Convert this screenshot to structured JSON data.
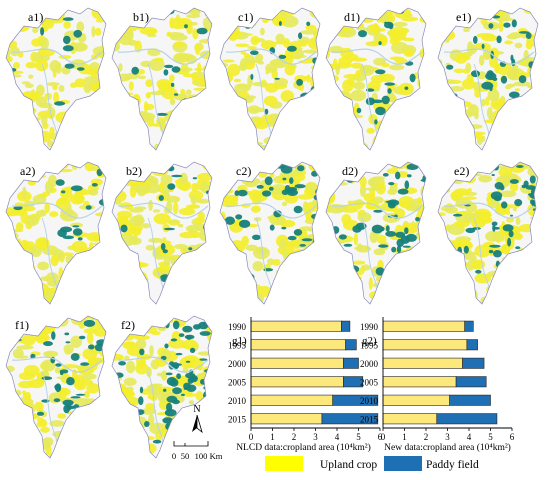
{
  "panels": [
    {
      "label": "a1)",
      "paddy_share": 0.1
    },
    {
      "label": "b1)",
      "paddy_share": 0.12
    },
    {
      "label": "c1)",
      "paddy_share": 0.15
    },
    {
      "label": "d1)",
      "paddy_share": 0.17
    },
    {
      "label": "e1)",
      "paddy_share": 0.22
    },
    {
      "label": "a2)",
      "paddy_share": 0.12
    },
    {
      "label": "b2)",
      "paddy_share": 0.13
    },
    {
      "label": "c2)",
      "paddy_share": 0.32
    },
    {
      "label": "d2)",
      "paddy_share": 0.36
    },
    {
      "label": "e2)",
      "paddy_share": 0.4
    },
    {
      "label": "f1)",
      "paddy_share": 0.3
    },
    {
      "label": "f2)",
      "paddy_share": 0.52
    }
  ],
  "north_arrow": "N",
  "scale_bar": {
    "ticks": [
      "0",
      "50",
      "100"
    ],
    "unit": "Km"
  },
  "legend": {
    "upland": {
      "label": "Upland crop",
      "color": "#ffff00"
    },
    "paddy": {
      "label": "Paddy field",
      "color": "#1f6fb4"
    }
  },
  "colors": {
    "upland": "#ffff00",
    "paddy": "#1f6fb4",
    "bar_upland": "#fde87c",
    "bar_paddy": "#1f6fb4",
    "map_paddy": "#16807a",
    "map_upland": "#f4ee2a"
  },
  "chart_data": [
    {
      "type": "bar",
      "panel_label": "g1)",
      "orientation": "horizontal",
      "stacked": true,
      "categories": [
        "1990",
        "1995",
        "2000",
        "2005",
        "2010",
        "2015"
      ],
      "series": [
        {
          "name": "Upland crop",
          "values": [
            4.2,
            4.4,
            4.3,
            4.3,
            3.8,
            3.3
          ]
        },
        {
          "name": "Paddy field",
          "values": [
            0.4,
            0.5,
            0.7,
            0.9,
            2.1,
            2.6
          ]
        }
      ],
      "xlabel": "NLCD data:cropland area (10⁴km²)",
      "xticks": [
        "0",
        "1",
        "2",
        "3",
        "4",
        "5",
        "6"
      ],
      "xlim": [
        0,
        6
      ]
    },
    {
      "type": "bar",
      "panel_label": "g2)",
      "orientation": "horizontal",
      "stacked": true,
      "categories": [
        "1990",
        "1995",
        "2000",
        "2005",
        "2010",
        "2015"
      ],
      "series": [
        {
          "name": "Upland crop",
          "values": [
            3.8,
            3.9,
            3.7,
            3.4,
            3.1,
            2.5
          ]
        },
        {
          "name": "Paddy field",
          "values": [
            0.4,
            0.5,
            1.0,
            1.4,
            1.9,
            2.8
          ]
        }
      ],
      "xlabel": "New data:cropland area (10⁴km²)",
      "xticks": [
        "0",
        "1",
        "2",
        "3",
        "4",
        "5",
        "6"
      ],
      "xlim": [
        0,
        6
      ]
    }
  ]
}
